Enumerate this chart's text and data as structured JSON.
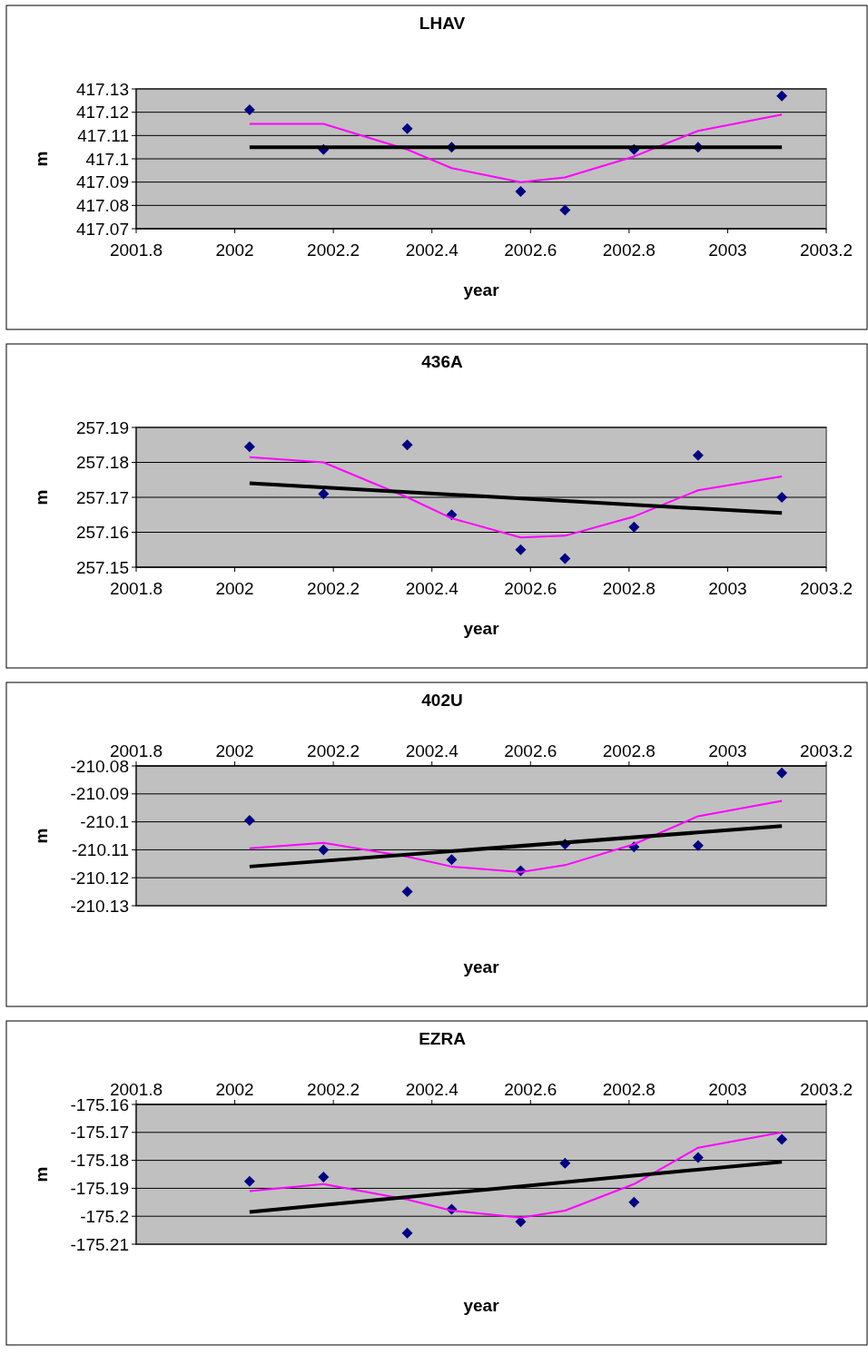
{
  "chart_data": [
    {
      "type": "scatter",
      "title": "LHAV",
      "xlabel": "year",
      "ylabel": "m",
      "xlim": [
        2001.8,
        2003.2
      ],
      "xticks": [
        2001.8,
        2002,
        2002.2,
        2002.4,
        2002.6,
        2002.8,
        2003,
        2003.2
      ],
      "ylim": [
        417.07,
        417.13
      ],
      "yticks": [
        417.07,
        417.08,
        417.09,
        417.1,
        417.11,
        417.12,
        417.13
      ],
      "grid": "y",
      "series": [
        {
          "type": "scatter",
          "marker": "diamond",
          "color": "#000080",
          "x": [
            2002.03,
            2002.18,
            2002.35,
            2002.44,
            2002.58,
            2002.67,
            2002.81,
            2002.94,
            2003.11
          ],
          "values": [
            417.121,
            417.104,
            417.113,
            417.105,
            417.086,
            417.078,
            417.104,
            417.105,
            417.127
          ]
        },
        {
          "type": "line",
          "marker": "none",
          "color": "#ff00ff",
          "x": [
            2002.03,
            2002.18,
            2002.35,
            2002.44,
            2002.58,
            2002.67,
            2002.81,
            2002.94,
            2003.11
          ],
          "values": [
            417.115,
            417.115,
            417.104,
            417.096,
            417.09,
            417.092,
            417.101,
            417.112,
            417.119
          ]
        },
        {
          "type": "line",
          "marker": "none",
          "color": "#000000",
          "x": [
            2002.03,
            2003.11
          ],
          "values": [
            417.105,
            417.105
          ]
        }
      ]
    },
    {
      "type": "scatter",
      "title": "436A",
      "xlabel": "year",
      "ylabel": "m",
      "xlim": [
        2001.8,
        2003.2
      ],
      "xticks": [
        2001.8,
        2002,
        2002.2,
        2002.4,
        2002.6,
        2002.8,
        2003,
        2003.2
      ],
      "ylim": [
        257.15,
        257.19
      ],
      "yticks": [
        257.15,
        257.16,
        257.17,
        257.18,
        257.19
      ],
      "grid": "y",
      "series": [
        {
          "type": "scatter",
          "marker": "diamond",
          "color": "#000080",
          "x": [
            2002.03,
            2002.18,
            2002.35,
            2002.44,
            2002.58,
            2002.67,
            2002.81,
            2002.94,
            2003.11
          ],
          "values": [
            257.1845,
            257.171,
            257.185,
            257.165,
            257.155,
            257.1525,
            257.1615,
            257.182,
            257.17
          ]
        },
        {
          "type": "line",
          "marker": "none",
          "color": "#ff00ff",
          "x": [
            2002.03,
            2002.18,
            2002.35,
            2002.44,
            2002.58,
            2002.67,
            2002.81,
            2002.94,
            2003.11
          ],
          "values": [
            257.1815,
            257.18,
            257.17,
            257.164,
            257.1585,
            257.159,
            257.1645,
            257.172,
            257.176
          ]
        },
        {
          "type": "line",
          "marker": "none",
          "color": "#000000",
          "x": [
            2002.03,
            2003.11
          ],
          "values": [
            257.174,
            257.1655
          ]
        }
      ]
    },
    {
      "type": "scatter",
      "title": "402U",
      "xlabel": "year",
      "ylabel": "m",
      "xlim": [
        2001.8,
        2003.2
      ],
      "xticks": [
        2001.8,
        2002,
        2002.2,
        2002.4,
        2002.6,
        2002.8,
        2003,
        2003.2
      ],
      "ylim": [
        -210.13,
        -210.08
      ],
      "yticks": [
        -210.13,
        -210.12,
        -210.11,
        -210.1,
        -210.09,
        -210.08
      ],
      "grid": "y",
      "series": [
        {
          "type": "scatter",
          "marker": "diamond",
          "color": "#000080",
          "x": [
            2002.03,
            2002.18,
            2002.35,
            2002.44,
            2002.58,
            2002.67,
            2002.81,
            2002.94,
            2003.11
          ],
          "values": [
            -210.0995,
            -210.11,
            -210.125,
            -210.1135,
            -210.1175,
            -210.108,
            -210.109,
            -210.1085,
            -210.0825
          ]
        },
        {
          "type": "line",
          "marker": "none",
          "color": "#ff00ff",
          "x": [
            2002.03,
            2002.18,
            2002.35,
            2002.44,
            2002.58,
            2002.67,
            2002.81,
            2002.94,
            2003.11
          ],
          "values": [
            -210.1095,
            -210.1075,
            -210.1125,
            -210.116,
            -210.118,
            -210.1155,
            -210.108,
            -210.098,
            -210.0925
          ]
        },
        {
          "type": "line",
          "marker": "none",
          "color": "#000000",
          "x": [
            2002.03,
            2003.11
          ],
          "values": [
            -210.116,
            -210.1015
          ]
        }
      ]
    },
    {
      "type": "scatter",
      "title": "EZRA",
      "xlabel": "year",
      "ylabel": "m",
      "xlim": [
        2001.8,
        2003.2
      ],
      "xticks": [
        2001.8,
        2002,
        2002.2,
        2002.4,
        2002.6,
        2002.8,
        2003,
        2003.2
      ],
      "ylim": [
        -175.21,
        -175.16
      ],
      "yticks": [
        -175.21,
        -175.2,
        -175.19,
        -175.18,
        -175.17,
        -175.16
      ],
      "grid": "y",
      "series": [
        {
          "type": "scatter",
          "marker": "diamond",
          "color": "#000080",
          "x": [
            2002.03,
            2002.18,
            2002.35,
            2002.44,
            2002.58,
            2002.67,
            2002.81,
            2002.94,
            2003.11
          ],
          "values": [
            -175.1875,
            -175.186,
            -175.206,
            -175.1975,
            -175.202,
            -175.181,
            -175.195,
            -175.179,
            -175.1725
          ]
        },
        {
          "type": "line",
          "marker": "none",
          "color": "#ff00ff",
          "x": [
            2002.03,
            2002.18,
            2002.35,
            2002.44,
            2002.58,
            2002.67,
            2002.81,
            2002.94,
            2003.11
          ],
          "values": [
            -175.191,
            -175.1885,
            -175.194,
            -175.198,
            -175.2005,
            -175.198,
            -175.1885,
            -175.1755,
            -175.17
          ]
        },
        {
          "type": "line",
          "marker": "none",
          "color": "#000000",
          "x": [
            2002.03,
            2003.11
          ],
          "values": [
            -175.1985,
            -175.1805
          ]
        }
      ]
    }
  ]
}
